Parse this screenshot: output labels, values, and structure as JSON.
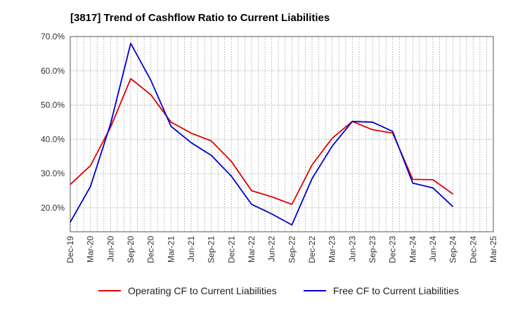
{
  "chart_data": {
    "type": "line",
    "title": "[3817]  Trend of Cashflow Ratio to Current Liabilities",
    "xlabel": "",
    "ylabel": "",
    "x": [
      "Dec-19",
      "Mar-20",
      "Jun-20",
      "Sep-20",
      "Dec-20",
      "Mar-21",
      "Jun-21",
      "Sep-21",
      "Dec-21",
      "Mar-22",
      "Jun-22",
      "Sep-22",
      "Dec-22",
      "Mar-23",
      "Jun-23",
      "Sep-23",
      "Dec-23",
      "Mar-24",
      "Jun-24",
      "Sep-24",
      "Dec-24",
      "Mar-25"
    ],
    "ylim": [
      13,
      70
    ],
    "yticks": [
      20,
      30,
      40,
      50,
      60,
      70
    ],
    "ytick_labels": [
      "20.0%",
      "30.0%",
      "40.0%",
      "50.0%",
      "60.0%",
      "70.0%"
    ],
    "grid": true,
    "legend_position": "bottom",
    "series": [
      {
        "name": "Operating CF to Current Liabilities",
        "color": "#e00000",
        "values": [
          26.8,
          32.3,
          43.5,
          57.7,
          53.0,
          45.0,
          41.8,
          39.5,
          33.5,
          25.0,
          23.2,
          21.0,
          32.5,
          40.3,
          45.2,
          42.8,
          41.8,
          28.3,
          28.2,
          24.0,
          null,
          null
        ]
      },
      {
        "name": "Free CF to Current Liabilities",
        "color": "#0000cc",
        "values": [
          15.8,
          26.2,
          44.5,
          68.0,
          57.2,
          43.8,
          39.0,
          35.3,
          29.2,
          21.0,
          18.2,
          15.0,
          28.5,
          38.0,
          45.2,
          45.0,
          42.3,
          27.2,
          25.8,
          20.3,
          null,
          null
        ]
      }
    ]
  }
}
